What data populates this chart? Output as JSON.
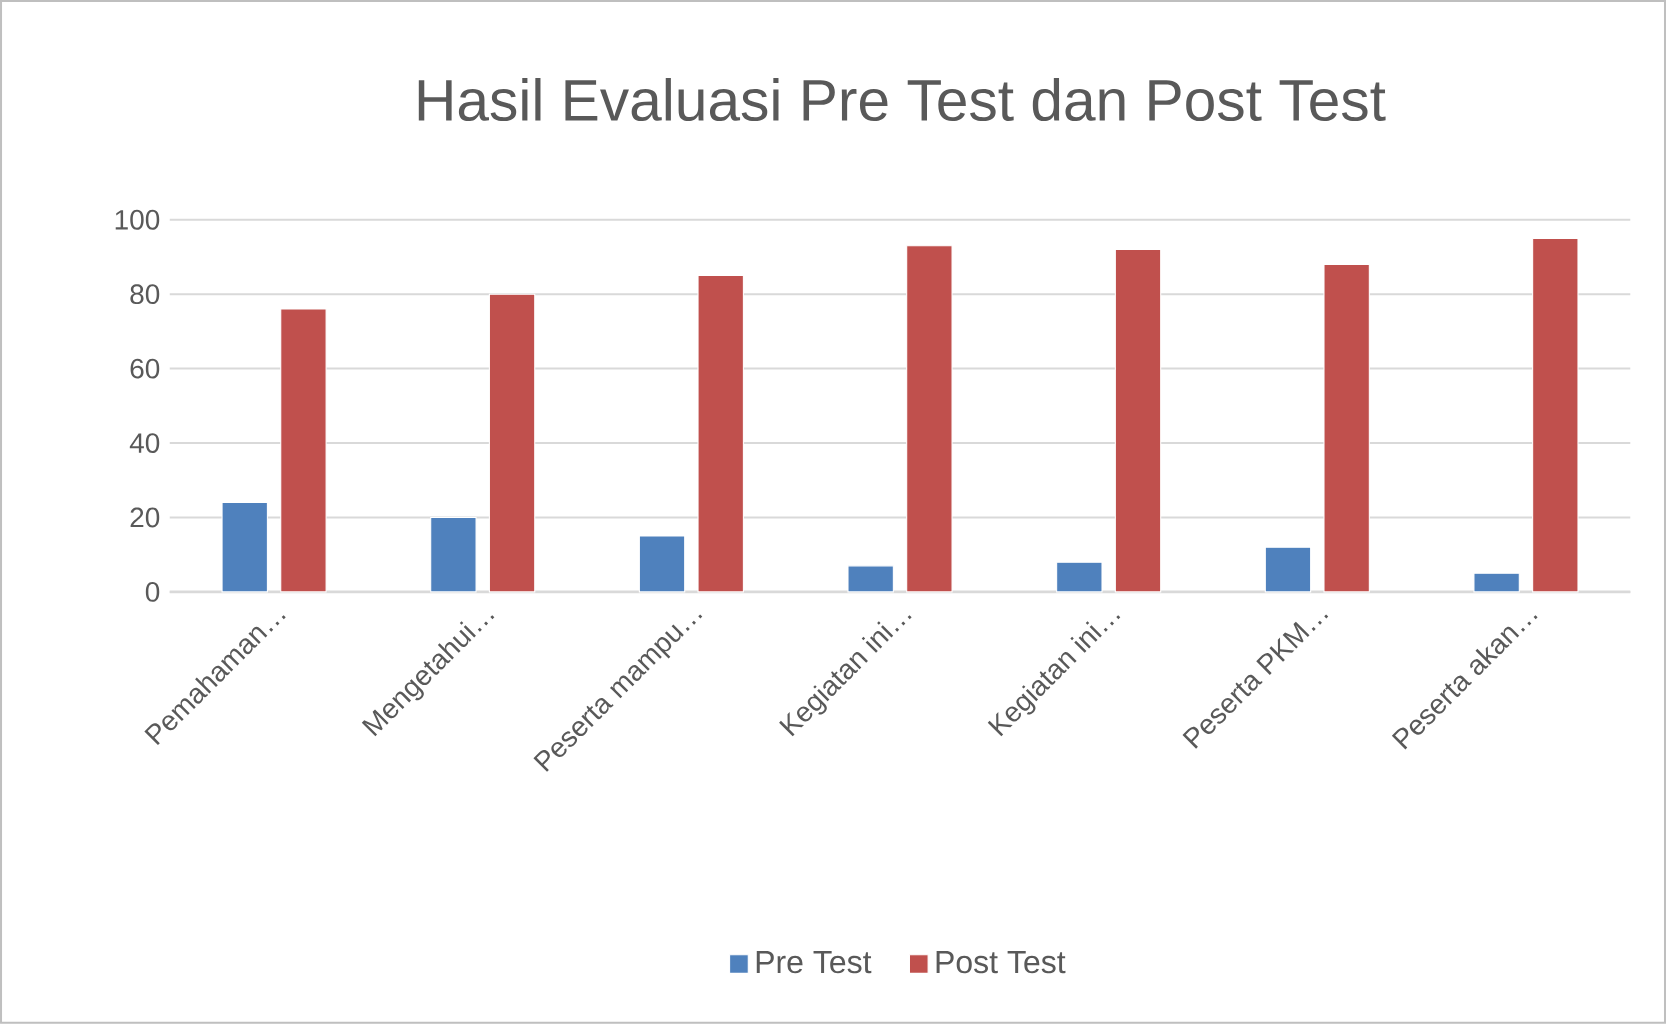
{
  "chart_data": {
    "type": "bar",
    "title": "Hasil Evaluasi Pre Test dan Post Test",
    "categories": [
      "Pemahaman…",
      "Mengetahui…",
      "Peserta mampu…",
      "Kegiatan ini…",
      "Kegiatan ini…",
      "Peserta PKM…",
      "Peserta akan…"
    ],
    "series": [
      {
        "name": "Pre Test",
        "color": "#4f81bd",
        "values": [
          24,
          20,
          15,
          7,
          8,
          12,
          5
        ]
      },
      {
        "name": "Post Test",
        "color": "#c0504d",
        "values": [
          76,
          80,
          85,
          93,
          92,
          88,
          95
        ]
      }
    ],
    "ylim": [
      0,
      100
    ],
    "yticks": [
      0,
      20,
      40,
      60,
      80,
      100
    ],
    "grid": "y",
    "legend": "bottom"
  }
}
